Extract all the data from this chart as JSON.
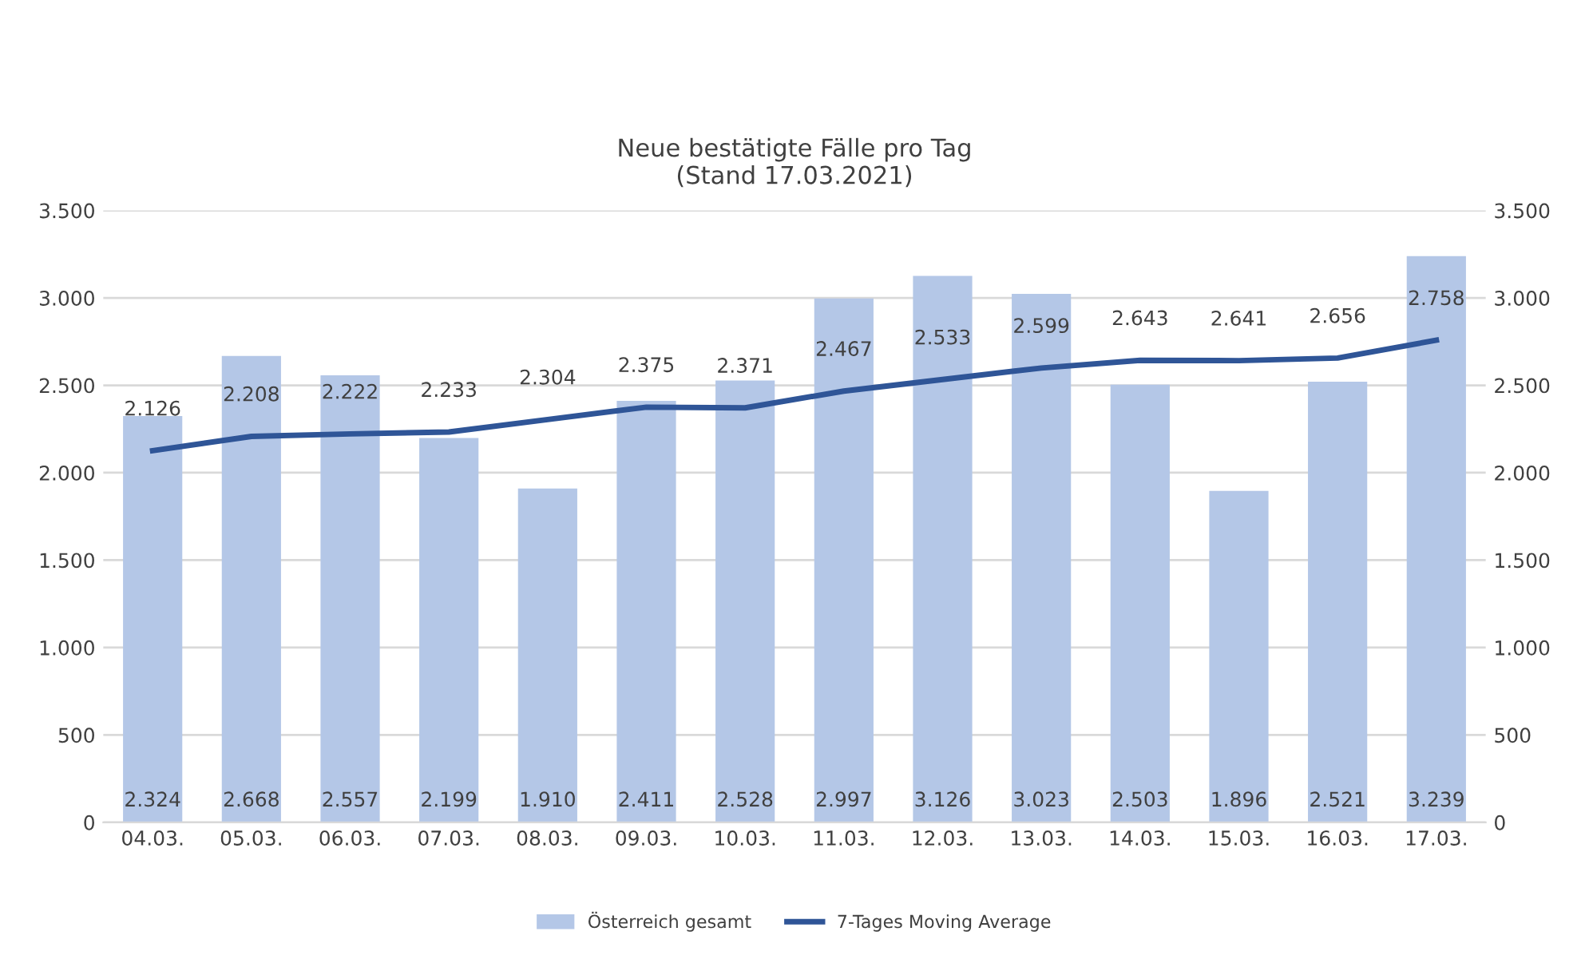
{
  "chart_data": {
    "type": "bar",
    "title": "Neue bestätigte Fälle pro Tag\n(Stand 17.03.2021)",
    "categories": [
      "04.03.",
      "05.03.",
      "06.03.",
      "07.03.",
      "08.03.",
      "09.03.",
      "10.03.",
      "11.03.",
      "12.03.",
      "13.03.",
      "14.03.",
      "15.03.",
      "16.03.",
      "17.03."
    ],
    "series": [
      {
        "name": "Österreich gesamt",
        "color": "#b4c7e7",
        "values": [
          2324,
          2668,
          2557,
          2199,
          1910,
          2411,
          2528,
          2997,
          3126,
          3023,
          2503,
          1896,
          2521,
          3239
        ],
        "value_labels": [
          "2.324",
          "2.668",
          "2.557",
          "2.199",
          "1.910",
          "2.411",
          "2.528",
          "2.997",
          "3.126",
          "3.023",
          "2.503",
          "1.896",
          "2.521",
          "3.239"
        ]
      },
      {
        "name": "7-Tages Moving Average",
        "type": "line",
        "color": "#2f5597",
        "values": [
          2126,
          2208,
          2222,
          2233,
          2304,
          2375,
          2371,
          2467,
          2533,
          2599,
          2643,
          2641,
          2656,
          2758
        ],
        "value_labels": [
          "2.126",
          "2.208",
          "2.222",
          "2.233",
          "2.304",
          "2.375",
          "2.371",
          "2.467",
          "2.533",
          "2.599",
          "2.643",
          "2.641",
          "2.656",
          "2.758"
        ]
      }
    ],
    "ylim": [
      0,
      3500
    ],
    "yticks": [
      0,
      500,
      {
        "value": 1000,
        "label": "1.000"
      },
      {
        "value": 1500,
        "label": "1.500"
      },
      {
        "value": 2000,
        "label": "2.000"
      },
      {
        "value": 2500,
        "label": "2.500"
      },
      {
        "value": 3000,
        "label": "3.000"
      },
      {
        "value": 3500,
        "label": "3.500"
      }
    ],
    "y2lim": [
      0,
      3500
    ],
    "y2ticks": [
      0,
      500,
      {
        "value": 1000,
        "label": "1.000"
      },
      {
        "value": 1500,
        "label": "1.500"
      },
      {
        "value": 2000,
        "label": "2.000"
      },
      {
        "value": 2500,
        "label": "2.500"
      },
      {
        "value": 3000,
        "label": "3.000"
      },
      {
        "value": 3500,
        "label": "3.500"
      }
    ],
    "grid": "y",
    "legend": "bottom",
    "marker": "none",
    "line_style": "solid"
  }
}
